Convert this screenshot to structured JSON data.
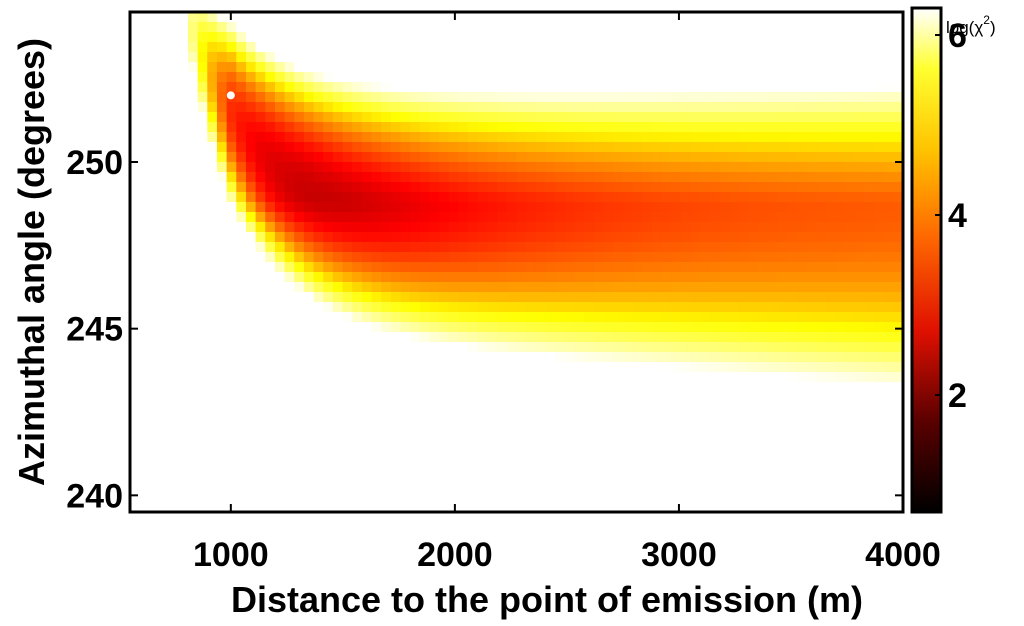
{
  "chart_data": {
    "type": "heatmap",
    "title": "",
    "xlabel": "Distance to the point of emission (m)",
    "ylabel": "Azimuthal angle (degrees)",
    "xlim": [
      550,
      4000
    ],
    "ylim": [
      239.5,
      254.5
    ],
    "x_ticks": [
      1000,
      2000,
      3000,
      4000
    ],
    "x_tick_labels": [
      "1000",
      "2000",
      "3000",
      "4000"
    ],
    "y_ticks": [
      240,
      245,
      250
    ],
    "y_tick_labels": [
      "240",
      "245",
      "250"
    ],
    "colorbar": {
      "title": "log(χ",
      "title_superscript": "2",
      "title_close": ")",
      "range": [
        0.7,
        6.3
      ],
      "ticks": [
        2,
        4,
        6
      ],
      "tick_labels": [
        "2",
        "4",
        "6"
      ],
      "colormap": "hot"
    },
    "minimum_marker": {
      "x": 1000,
      "y": 252,
      "color": "#ffffff"
    },
    "grid": false
  }
}
